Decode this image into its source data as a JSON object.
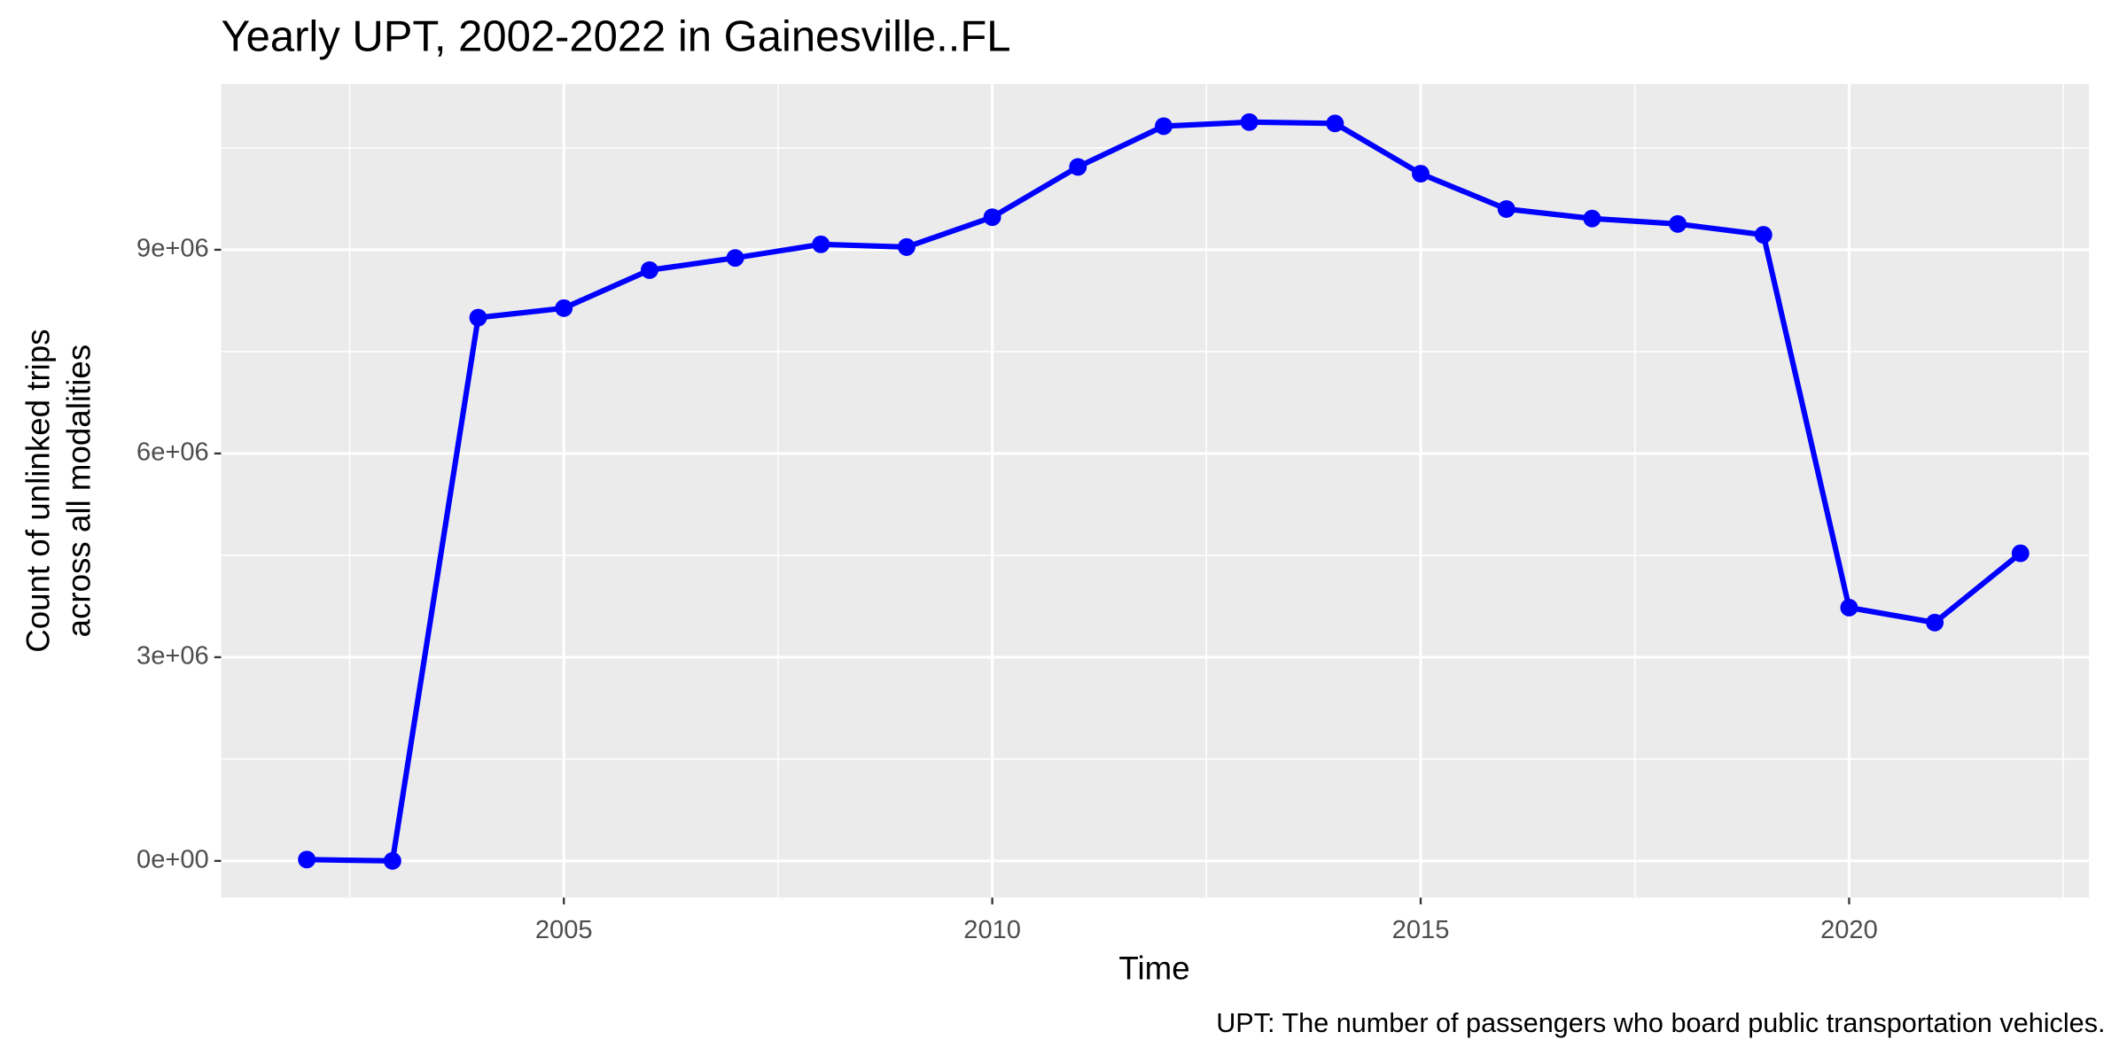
{
  "chart_data": {
    "type": "line",
    "title": "Yearly UPT, 2002-2022 in Gainesville..FL",
    "xlabel": "Time",
    "ylabel": [
      "Count of unlinked trips",
      "across all modalities"
    ],
    "caption": "UPT: The number of passengers who board public transportation vehicles.",
    "x": [
      2002,
      2003,
      2004,
      2005,
      2006,
      2007,
      2008,
      2009,
      2010,
      2011,
      2012,
      2013,
      2014,
      2015,
      2016,
      2017,
      2018,
      2019,
      2020,
      2021,
      2022
    ],
    "series": [
      {
        "name": "UPT",
        "color": "#0000ff",
        "values": [
          20000,
          0,
          8000000,
          8140000,
          8700000,
          8880000,
          9080000,
          9040000,
          9480000,
          10220000,
          10820000,
          10880000,
          10860000,
          10120000,
          9600000,
          9460000,
          9380000,
          9220000,
          3730000,
          3510000,
          4530000
        ]
      }
    ],
    "xlim": [
      2001,
      2022.8
    ],
    "xticks": [
      2005,
      2010,
      2015,
      2020
    ],
    "ylim": [
      -540000,
      11440000
    ],
    "yticks": [
      {
        "value": 0,
        "label": "0e+00"
      },
      {
        "value": 3000000,
        "label": "3e+06"
      },
      {
        "value": 6000000,
        "label": "6e+06"
      },
      {
        "value": 9000000,
        "label": "9e+06"
      }
    ],
    "grid": true
  }
}
